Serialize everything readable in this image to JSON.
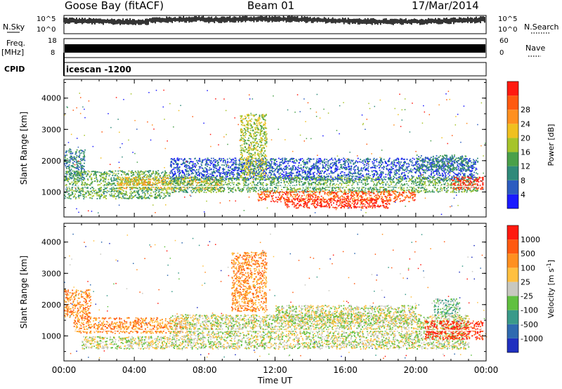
{
  "header": {
    "radar": "Goose Bay (fitACF)",
    "beam": "Beam 01",
    "date": "17/Mar/2014"
  },
  "strips": {
    "nsky_label": "N.Sky",
    "nsky_ticks": [
      "10^5",
      "10^0"
    ],
    "nsearch_label": "N.Search",
    "nsearch_ticks": [
      "10^5",
      "10^0"
    ],
    "freq_label": "Freq.",
    "freq_unit": "[MHz]",
    "freq_ticks": [
      "18",
      "8"
    ],
    "nave_label": "Nave",
    "nave_ticks": [
      "60",
      "0"
    ],
    "cpid_label": "CPID",
    "cpid_value": "icescan -1200"
  },
  "chart_data": [
    {
      "type": "heatmap",
      "name": "power-panel",
      "ylabel": "Slant Range [km]",
      "xlabel": "",
      "x_ticks": [
        "00:00",
        "04:00",
        "08:00",
        "12:00",
        "16:00",
        "20:00",
        "00:00"
      ],
      "xlim_hours": [
        0,
        24
      ],
      "ylim": [
        200,
        4600
      ],
      "y_ticks": [
        1000,
        2000,
        3000,
        4000
      ],
      "colorbar": {
        "label": "Power [dB]",
        "ticks": [
          "4",
          "8",
          "12",
          "16",
          "20",
          "24",
          "28"
        ],
        "colors": [
          "#1a1aff",
          "#2c5cc0",
          "#2f8a7a",
          "#4aa04a",
          "#a6c42a",
          "#f0c020",
          "#ff9020",
          "#ff5a10",
          "#ff1a10"
        ]
      },
      "regions": [
        {
          "t": [
            0,
            1.2
          ],
          "r": [
            1400,
            2400
          ],
          "level": 2
        },
        {
          "t": [
            0,
            6
          ],
          "r": [
            800,
            1700
          ],
          "level": 3
        },
        {
          "t": [
            3,
            9
          ],
          "r": [
            1100,
            1500
          ],
          "level": 5
        },
        {
          "t": [
            6,
            23.5
          ],
          "r": [
            1400,
            2100
          ],
          "level": 1
        },
        {
          "t": [
            6,
            23.5
          ],
          "r": [
            1000,
            1500
          ],
          "level": 3
        },
        {
          "t": [
            10,
            11.5
          ],
          "r": [
            1500,
            3500
          ],
          "level": 4
        },
        {
          "t": [
            11,
            20
          ],
          "r": [
            700,
            1050
          ],
          "level": 7
        },
        {
          "t": [
            12.5,
            18.5
          ],
          "r": [
            500,
            800
          ],
          "level": 8
        },
        {
          "t": [
            20,
            23
          ],
          "r": [
            1700,
            2200
          ],
          "level": 2
        },
        {
          "t": [
            22,
            23.8
          ],
          "r": [
            1100,
            1500
          ],
          "level": 8
        }
      ]
    },
    {
      "type": "heatmap",
      "name": "velocity-panel",
      "ylabel": "Slant Range [km]",
      "xlabel": "Time UT",
      "x_ticks": [
        "00:00",
        "04:00",
        "08:00",
        "12:00",
        "16:00",
        "20:00",
        "00:00"
      ],
      "xlim_hours": [
        0,
        24
      ],
      "ylim": [
        200,
        4600
      ],
      "y_ticks": [
        1000,
        2000,
        3000,
        4000
      ],
      "colorbar": {
        "label": "Velocity [m s",
        "label_sup": "-1",
        "label_end": "]",
        "ticks": [
          "1000",
          "500",
          "100",
          "25",
          "-25",
          "-100",
          "-500",
          "-1000"
        ],
        "colors": [
          "#2030c0",
          "#2f6ab0",
          "#3a9a8a",
          "#60c040",
          "#c8c8c0",
          "#ffc040",
          "#ff9020",
          "#ff5a10",
          "#ff1a10"
        ]
      },
      "regions": [
        {
          "t": [
            0,
            1.5
          ],
          "r": [
            1600,
            2500
          ],
          "level": 6
        },
        {
          "t": [
            0.5,
            7
          ],
          "r": [
            1100,
            1600
          ],
          "level": 6
        },
        {
          "t": [
            1,
            23
          ],
          "r": [
            600,
            1000
          ],
          "level": 4
        },
        {
          "t": [
            6,
            23
          ],
          "r": [
            1000,
            1700
          ],
          "level": 4
        },
        {
          "t": [
            9.5,
            11.5
          ],
          "r": [
            1800,
            3700
          ],
          "level": 6
        },
        {
          "t": [
            12,
            20
          ],
          "r": [
            1400,
            2000
          ],
          "level": 4
        },
        {
          "t": [
            20.5,
            23.8
          ],
          "r": [
            900,
            1500
          ],
          "level": 8
        },
        {
          "t": [
            21,
            22.5
          ],
          "r": [
            1600,
            2200
          ],
          "level": 3
        }
      ]
    }
  ]
}
